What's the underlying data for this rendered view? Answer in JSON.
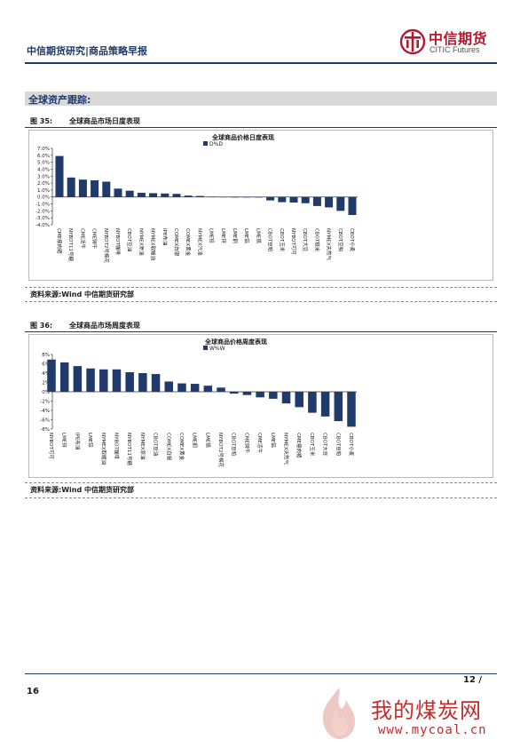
{
  "header": {
    "title": "中信期货研究|商品策略早报",
    "logo_cn": "中信期货",
    "logo_en": "CITIC Futures"
  },
  "section": {
    "title": "全球资产跟踪:"
  },
  "figures": [
    {
      "label": "图 35:",
      "caption": "全球商品市场日度表现",
      "source": "资料来源:Wind 中信期货研究部",
      "chart_data": {
        "type": "bar",
        "title": "全球商品价格日度表现",
        "legend": "D%D",
        "legend_position": "top",
        "y_tick_labels": [
          "7.0%",
          "6.0%",
          "5.0%",
          "4.0%",
          "3.0%",
          "2.0%",
          "1.0%",
          "0.0%",
          "-1.0%",
          "-2.0%",
          "-3.0%",
          "-4.0%"
        ],
        "ylim": [
          -4,
          7
        ],
        "grid": false,
        "color": "#1f3a6b",
        "categories": [
          "CME瘦肉猪",
          "NYBOT11号糖",
          "CME活牛",
          "CME饲牛",
          "NYBOT2号棉花",
          "NYBOT咖啡",
          "CBOT豆油",
          "NYMEX原油",
          "NYMEX取暖油",
          "IPE布油",
          "COMEX白银",
          "COMEX黄金",
          "NYMEX汽油",
          "LME铅",
          "LME锌",
          "LME铜",
          "LME铝",
          "LME锡",
          "CBOT豆粕",
          "CBOT玉米",
          "NYBOT可可",
          "CBOT大豆",
          "CBOT糙米",
          "NYMEX天然气",
          "CBOT豆粕",
          "CBOT小麦"
        ],
        "x_tick_labels": [
          "CME瘦肉猪",
          "NYBOT11号糖",
          "CME活牛",
          "CME饲牛",
          "NYBOT2号棉花",
          "NYBOT咖啡",
          "CBOT豆油",
          "NYMEX原油",
          "NYMEX取暖油",
          "IPE布油",
          "COMEX白银",
          "COMEX黄金",
          "NYMEX汽油",
          "LME铅",
          "LME锌",
          "LME铜",
          "LME铝",
          "LME锡",
          "CBOT豆粕",
          "CBOT玉米",
          "NYBOT可可",
          "CBOT大豆",
          "CBOT糙米",
          "NYMEX天然气",
          "CBOT豆粕",
          "CBOT小麦"
        ],
        "values": [
          5.9,
          2.8,
          2.5,
          2.4,
          2.2,
          1.2,
          0.9,
          0.6,
          0.55,
          0.5,
          0.45,
          0.2,
          0.15,
          0.05,
          0.02,
          0.0,
          -0.02,
          -0.05,
          -0.5,
          -0.75,
          -0.8,
          -0.9,
          -1.3,
          -1.5,
          -2.0,
          -2.6
        ]
      }
    },
    {
      "label": "图 36:",
      "caption": "全球商品市场周度表现",
      "source": "资料来源:Wind 中信期货研究部",
      "chart_data": {
        "type": "bar",
        "title": "全球商品价格周度表现",
        "legend": "W%W",
        "legend_position": "top",
        "y_tick_labels": [
          "8%",
          "6%",
          "4%",
          "2%",
          "0%",
          "-2%",
          "-4%",
          "-6%",
          "-8%"
        ],
        "ylim": [
          -8,
          8
        ],
        "grid": false,
        "color": "#1f3a6b",
        "categories": [
          "NYBOT可可",
          "LME锌",
          "IPE布油",
          "LME铅",
          "NYMEX取暖油",
          "NYBOT咖啡",
          "NYBOT11号糖",
          "NYMEX原油",
          "CBOT豆油",
          "COMEX白银",
          "COMEX黄金",
          "LME铜",
          "LME锡",
          "NYBOT2号棉花",
          "CBOT豆粕",
          "CME饲牛",
          "CME活牛",
          "LME铝",
          "NYMEX天然气",
          "CME瘦肉猪",
          "CBOT玉米",
          "CBOT大豆",
          "CBOT豆粕",
          "CBOT小麦"
        ],
        "x_tick_labels": [
          "NYBOT可可",
          "LME锌",
          "IPE布油",
          "LME铅",
          "NYMEX取暖油",
          "NYBOT咖啡",
          "NYBOT11号糖",
          "NYMEX原油",
          "CBOT豆油",
          "COMEX白银",
          "COMEX黄金",
          "LME铜",
          "LME锡",
          "NYBOT2号棉花",
          "CBOT豆粕",
          "CME饲牛",
          "CME活牛",
          "LME铝",
          "NYMEX天然气",
          "CME瘦肉猪",
          "CBOT玉米",
          "CBOT大豆",
          "CBOT豆粕",
          "CBOT小麦"
        ],
        "values": [
          6.9,
          6.3,
          5.5,
          5.0,
          4.8,
          4.8,
          4.2,
          4.0,
          3.8,
          2.2,
          1.8,
          1.7,
          1.3,
          0.9,
          -0.4,
          -0.7,
          -1.2,
          -1.5,
          -2.5,
          -3.3,
          -4.5,
          -5.3,
          -6.3,
          -7.5
        ]
      }
    }
  ],
  "footer": {
    "page_right": "12 /",
    "page_left": "16"
  },
  "watermark": {
    "text_cn": "我的煤炭网",
    "url": "www.mycoal.cn"
  }
}
